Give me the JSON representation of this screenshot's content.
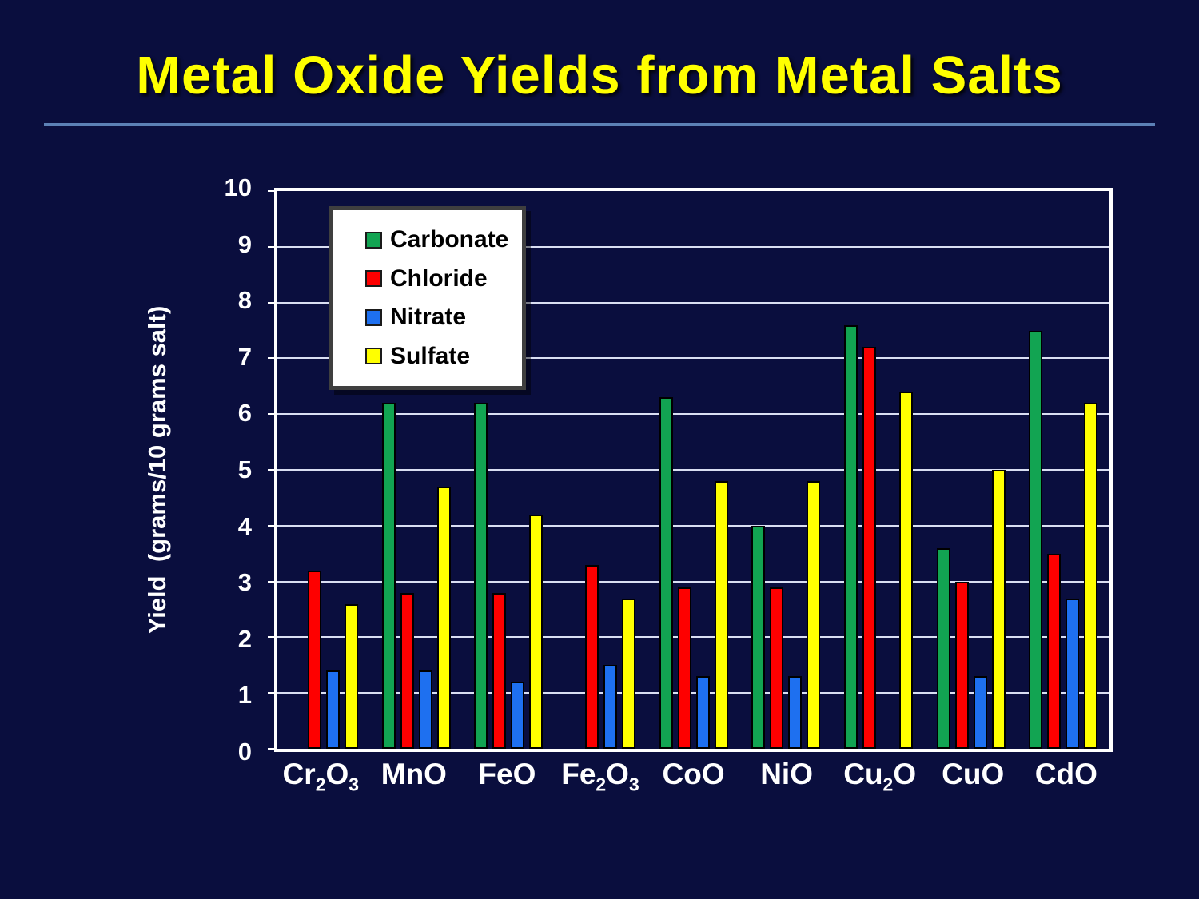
{
  "slide": {
    "title": "Metal Oxide Yields from Metal Salts",
    "title_color": "#FFFF00",
    "divider_color": "#5C81B6",
    "background_color": "#0A0E3E"
  },
  "chart_data": {
    "type": "bar",
    "title": "",
    "xlabel": "",
    "ylabel": "Yield  (grams/10 grams salt)",
    "ylim": [
      0,
      10
    ],
    "yticks": [
      0,
      1,
      2,
      3,
      4,
      5,
      6,
      7,
      8,
      9,
      10
    ],
    "grid": true,
    "gridline_color": "#D9DEF2",
    "legend_position": "top-left-inside",
    "categories": [
      "Cr2O3",
      "MnO",
      "FeO",
      "Fe2O3",
      "CoO",
      "NiO",
      "Cu2O",
      "CuO",
      "CdO"
    ],
    "series": [
      {
        "name": "Carbonate",
        "color": "#12A452",
        "values": [
          0,
          6.2,
          6.2,
          0,
          6.3,
          4.0,
          7.6,
          3.6,
          7.5
        ]
      },
      {
        "name": "Chloride",
        "color": "#FE0000",
        "values": [
          3.2,
          2.8,
          2.8,
          3.3,
          2.9,
          2.9,
          7.2,
          3.0,
          3.5
        ]
      },
      {
        "name": "Nitrate",
        "color": "#1E70F0",
        "values": [
          1.4,
          1.4,
          1.2,
          1.5,
          1.3,
          1.3,
          0,
          1.3,
          2.7
        ]
      },
      {
        "name": "Sulfate",
        "color": "#FFFF00",
        "values": [
          2.6,
          4.7,
          4.2,
          2.7,
          4.8,
          4.8,
          6.4,
          5.0,
          6.2
        ]
      }
    ]
  }
}
